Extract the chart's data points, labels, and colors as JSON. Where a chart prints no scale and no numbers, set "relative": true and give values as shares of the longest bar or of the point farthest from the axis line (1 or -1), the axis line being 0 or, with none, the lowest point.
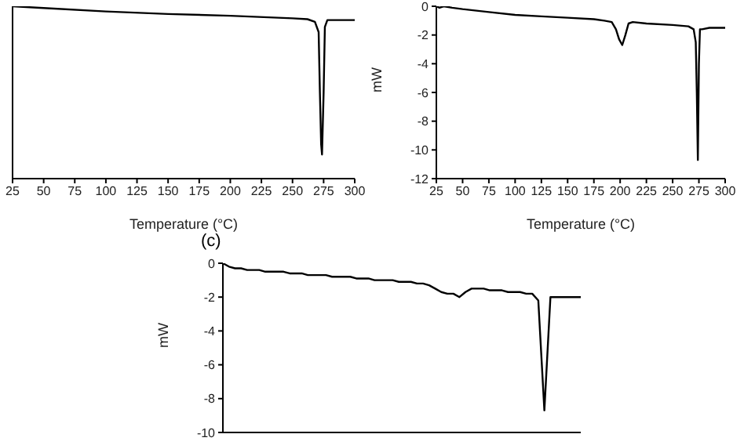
{
  "chart_data": [
    {
      "type": "line",
      "relative": true,
      "xlabel": "Temperature (°C)",
      "xlim": [
        25,
        300
      ],
      "xticks": [
        25,
        50,
        75,
        100,
        125,
        150,
        175,
        200,
        225,
        250,
        275,
        300
      ],
      "tick_labels": "x",
      "grid": false,
      "marker": "none",
      "line_style": "solid",
      "legend": false,
      "series": [
        {
          "color": "#000000",
          "x": [
            25,
            50,
            100,
            150,
            200,
            250,
            262,
            268,
            271,
            272,
            273,
            273.7,
            275,
            276,
            278,
            300
          ],
          "values": [
            1.0,
            0.99,
            0.97,
            0.955,
            0.945,
            0.93,
            0.925,
            0.91,
            0.85,
            0.5,
            0.2,
            0.14,
            0.5,
            0.88,
            0.92,
            0.92
          ]
        }
      ]
    },
    {
      "type": "line",
      "xlabel": "Temperature (°C)",
      "ylabel": "mW",
      "xlim": [
        25,
        300
      ],
      "xticks": [
        25,
        50,
        75,
        100,
        125,
        150,
        175,
        200,
        225,
        250,
        275,
        300
      ],
      "ylim": [
        -12,
        0
      ],
      "yticks": [
        -12,
        -10,
        -8,
        -6,
        -4,
        -2,
        0
      ],
      "grid": false,
      "marker": "none",
      "line_style": "solid",
      "legend": false,
      "series": [
        {
          "color": "#000000",
          "x": [
            25,
            28,
            32,
            40,
            50,
            75,
            100,
            125,
            150,
            175,
            185,
            192,
            196,
            199,
            202,
            205,
            208,
            212,
            225,
            250,
            265,
            270,
            272,
            273,
            274,
            275,
            276,
            278,
            285,
            300
          ],
          "values": [
            0,
            -0.1,
            0,
            -0.1,
            -0.2,
            -0.4,
            -0.6,
            -0.7,
            -0.8,
            -0.9,
            -1.0,
            -1.1,
            -1.6,
            -2.3,
            -2.7,
            -2.0,
            -1.2,
            -1.1,
            -1.2,
            -1.3,
            -1.4,
            -1.6,
            -2.5,
            -6,
            -10.7,
            -4,
            -1.6,
            -1.6,
            -1.5,
            -1.5
          ]
        }
      ]
    },
    {
      "type": "line",
      "title": "(c)",
      "ylabel": "mW",
      "ylim": [
        -10,
        0
      ],
      "yticks": [
        -10,
        -8,
        -6,
        -4,
        -2,
        0
      ],
      "tick_labels": "y",
      "grid": false,
      "marker": "none",
      "line_style": "solid",
      "legend": false,
      "categories": [
        null,
        null,
        null,
        null,
        null,
        null,
        null,
        null,
        null,
        null,
        null,
        null,
        null,
        null,
        null,
        null,
        null,
        null,
        null,
        null,
        null,
        null,
        null,
        null,
        null,
        null,
        null,
        null,
        null,
        null,
        null,
        null,
        null,
        null,
        null,
        null,
        null,
        null,
        null,
        null,
        null,
        null,
        null,
        null,
        null,
        null,
        null,
        null,
        null,
        null,
        null,
        null,
        null,
        null,
        null,
        null,
        null,
        null,
        null,
        null
      ],
      "series": [
        {
          "color": "#000000",
          "values": [
            0,
            -0.2,
            -0.3,
            -0.3,
            -0.4,
            -0.4,
            -0.4,
            -0.5,
            -0.5,
            -0.5,
            -0.5,
            -0.6,
            -0.6,
            -0.6,
            -0.7,
            -0.7,
            -0.7,
            -0.7,
            -0.8,
            -0.8,
            -0.8,
            -0.8,
            -0.9,
            -0.9,
            -0.9,
            -1.0,
            -1.0,
            -1.0,
            -1.0,
            -1.1,
            -1.1,
            -1.1,
            -1.2,
            -1.2,
            -1.3,
            -1.5,
            -1.7,
            -1.8,
            -1.8,
            -2.0,
            -1.7,
            -1.5,
            -1.5,
            -1.5,
            -1.6,
            -1.6,
            -1.6,
            -1.7,
            -1.7,
            -1.7,
            -1.8,
            -1.8,
            -2.2,
            -8.7,
            -2.0,
            -2.0,
            -2.0,
            -2.0,
            -2.0,
            -2.0
          ]
        }
      ]
    }
  ]
}
